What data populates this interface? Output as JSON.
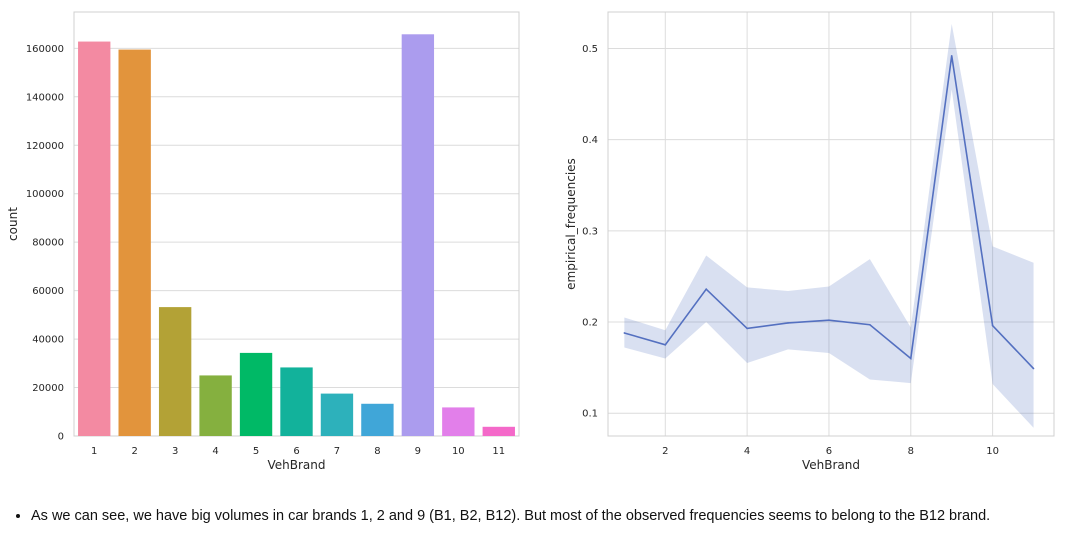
{
  "chart_data": [
    {
      "type": "bar",
      "categories": [
        "1",
        "2",
        "3",
        "4",
        "5",
        "6",
        "7",
        "8",
        "9",
        "10",
        "11"
      ],
      "values": [
        162800,
        159500,
        53200,
        25000,
        34300,
        28300,
        17500,
        13300,
        165800,
        11800,
        3800
      ],
      "colors": [
        "#f38aa2",
        "#e2943c",
        "#b3a236",
        "#85b03f",
        "#00b966",
        "#12b29b",
        "#2db1bb",
        "#40a6d8",
        "#ab9cee",
        "#e27fea",
        "#f469c9"
      ],
      "xlabel": "VehBrand",
      "ylabel": "count",
      "ylim": [
        0,
        175000
      ],
      "yticks": [
        0,
        20000,
        40000,
        60000,
        80000,
        100000,
        120000,
        140000,
        160000
      ],
      "grid": "horizontal"
    },
    {
      "type": "line",
      "x": [
        1,
        2,
        3,
        4,
        5,
        6,
        7,
        8,
        9,
        10,
        11
      ],
      "series": [
        {
          "values": [
            0.188,
            0.175,
            0.236,
            0.193,
            0.199,
            0.202,
            0.197,
            0.16,
            0.492,
            0.196,
            0.149
          ],
          "ci_low": [
            0.172,
            0.16,
            0.2,
            0.155,
            0.17,
            0.166,
            0.137,
            0.133,
            0.455,
            0.132,
            0.084
          ],
          "ci_high": [
            0.205,
            0.191,
            0.273,
            0.238,
            0.234,
            0.239,
            0.269,
            0.194,
            0.527,
            0.283,
            0.265
          ],
          "color": "#5470c0"
        }
      ],
      "xlabel": "VehBrand",
      "ylabel": "empirical_frequencies",
      "xlim": [
        0.6,
        11.5
      ],
      "ylim": [
        0.075,
        0.54
      ],
      "xticks": [
        2,
        4,
        6,
        8,
        10
      ],
      "yticks": [
        0.1,
        0.2,
        0.3,
        0.4,
        0.5
      ],
      "grid": "both"
    }
  ],
  "note": {
    "text": "As we can see, we have big volumes in car brands 1, 2 and 9 (B1, B2, B12). But most of the observed frequencies seems to belong to the B12 brand."
  }
}
